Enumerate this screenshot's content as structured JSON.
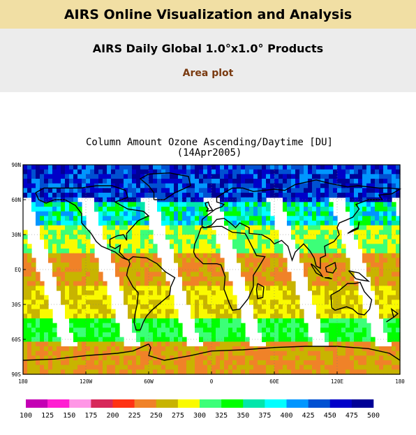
{
  "header": {
    "banner_title": "AIRS Online Visualization and Analysis",
    "product_title": "AIRS Daily Global 1.0°x1.0° Products",
    "plot_type": "Area plot"
  },
  "chart_data": {
    "type": "heatmap",
    "title": "Column Amount Ozone Ascending/Daytime [DU]",
    "subtitle": "(14Apr2005)",
    "x_ticks": [
      "180",
      "120W",
      "60W",
      "0",
      "60E",
      "120E",
      "180"
    ],
    "y_ticks": [
      "90N",
      "60N",
      "30N",
      "EQ",
      "30S",
      "60S",
      "90S"
    ],
    "xlim": [
      -180,
      180
    ],
    "ylim": [
      -90,
      90
    ],
    "grid": true,
    "colorbar": {
      "bounds": [
        100,
        125,
        150,
        175,
        200,
        225,
        250,
        275,
        300,
        325,
        350,
        375,
        400,
        425,
        450,
        475,
        500
      ],
      "labels": [
        "100",
        "125",
        "150",
        "175",
        "200",
        "225",
        "250",
        "275",
        "300",
        "325",
        "350",
        "375",
        "400",
        "425",
        "450",
        "475",
        "500"
      ],
      "colors": [
        "#c400b4",
        "#ff1ed2",
        "#ff96e6",
        "#d7285a",
        "#ff3214",
        "#f08228",
        "#c8b400",
        "#fafa00",
        "#3cff78",
        "#00ff00",
        "#00e6aa",
        "#00ffff",
        "#0096ff",
        "#0050d2",
        "#0000c8",
        "#000096"
      ]
    },
    "latitude_bands": [
      {
        "lat_range": [
          60,
          90
        ],
        "range_du": [
          400,
          500
        ]
      },
      {
        "lat_range": [
          40,
          60
        ],
        "range_du": [
          325,
          425
        ]
      },
      {
        "lat_range": [
          15,
          40
        ],
        "range_du": [
          275,
          325
        ]
      },
      {
        "lat_range": [
          -15,
          15
        ],
        "range_du": [
          225,
          275
        ]
      },
      {
        "lat_range": [
          -40,
          -15
        ],
        "range_du": [
          250,
          300
        ]
      },
      {
        "lat_range": [
          -60,
          -40
        ],
        "range_du": [
          300,
          350
        ]
      },
      {
        "lat_range": [
          -90,
          -60
        ],
        "range_du": [
          225,
          275
        ]
      }
    ],
    "orbit_gaps": "Diagonal white swaths between satellite passes contain no data"
  }
}
